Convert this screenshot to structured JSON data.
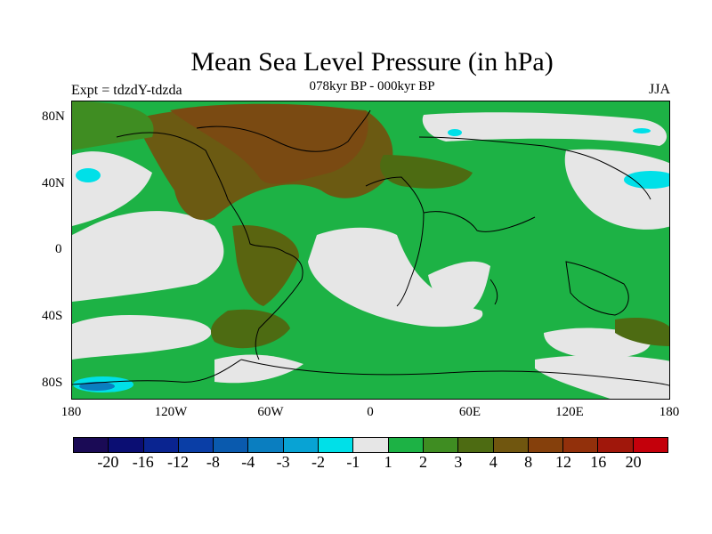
{
  "title": "Mean Sea Level Pressure (in hPa)",
  "experiment": "Expt = tdzdY-tdzda",
  "period": "078kyr BP - 000kyr BP",
  "season": "JJA",
  "lat_labels": [
    "80N",
    "40N",
    "0",
    "40S",
    "80S"
  ],
  "lon_labels": [
    "180",
    "120W",
    "60W",
    "0",
    "60E",
    "120E",
    "180"
  ],
  "colorbar": {
    "colors": [
      "#1a0a55",
      "#0b0e73",
      "#0a2490",
      "#0a3ea6",
      "#0a5aae",
      "#0a7ec0",
      "#08a3d4",
      "#00e0e8",
      "#e6e6e6",
      "#1db245",
      "#3f8d22",
      "#4d6b12",
      "#70560f",
      "#85400c",
      "#92300b",
      "#a0170b",
      "#c4000b"
    ],
    "labels": [
      "-20",
      "-16",
      "-12",
      "-8",
      "-4",
      "-3",
      "-2",
      "-1",
      "1",
      "2",
      "3",
      "4",
      "8",
      "12",
      "16",
      "20"
    ]
  }
}
